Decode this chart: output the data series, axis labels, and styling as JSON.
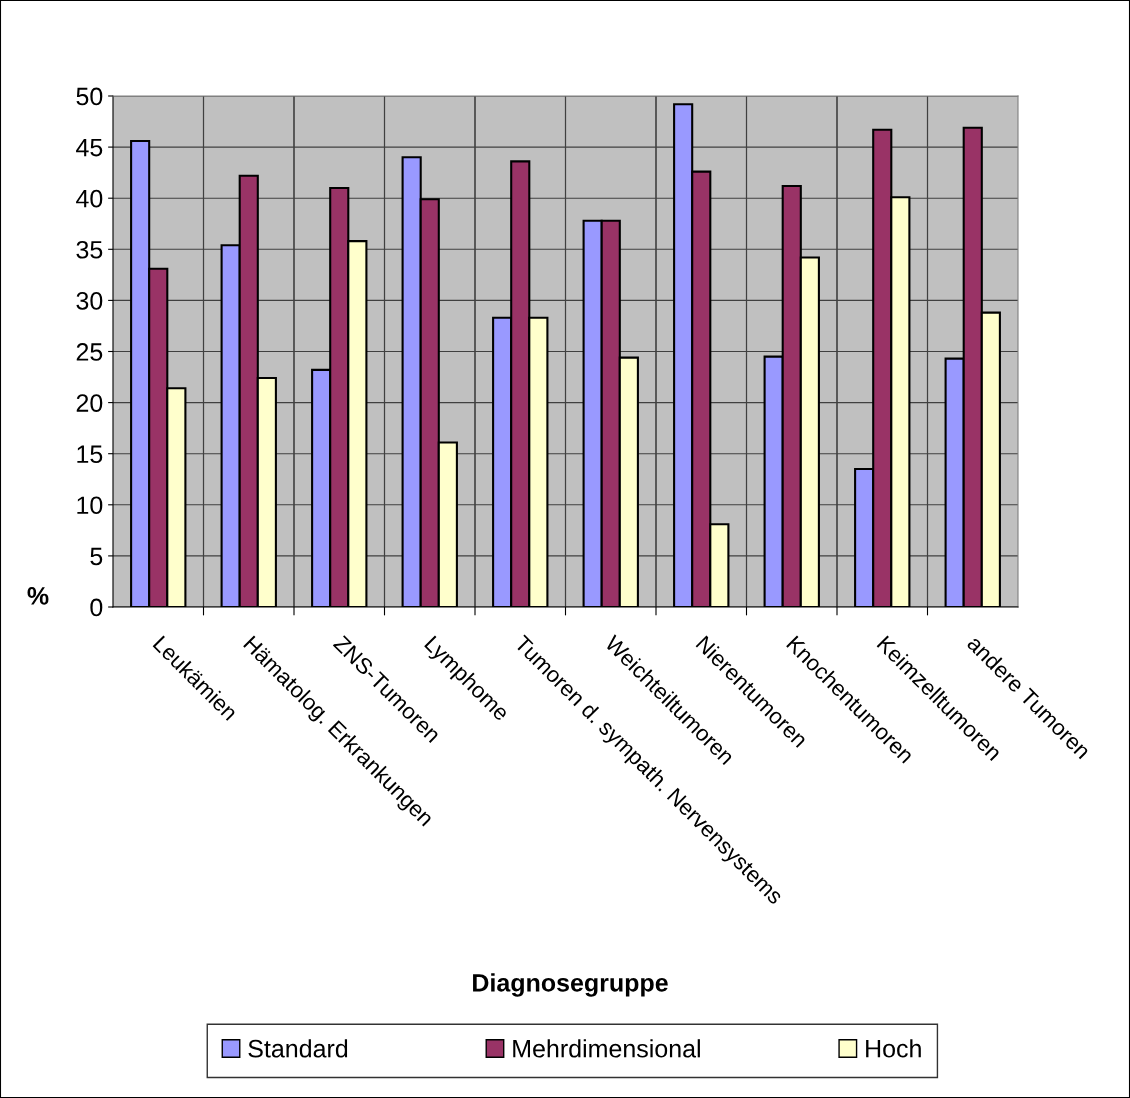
{
  "chart_data": {
    "type": "bar",
    "xlabel": "Diagnosegruppe",
    "ylabel": "%",
    "categories": [
      "Leukämien",
      "Hämatolog. Erkrankungen",
      "ZNS-Tumoren",
      "Lymphome",
      "Tumoren d. sympath. Nervensystems",
      "Weichteiltumoren",
      "Nierentumoren",
      "Knochentumoren",
      "Keimzelltumoren",
      "andere Tumoren"
    ],
    "series": [
      {
        "name": "Standard",
        "color": "#9999ff",
        "values": [
          45.6,
          35.4,
          23.2,
          44.0,
          28.3,
          37.8,
          49.2,
          24.5,
          13.5,
          24.3
        ]
      },
      {
        "name": "Mehrdimensional",
        "color": "#993366",
        "values": [
          33.1,
          42.2,
          41.0,
          39.9,
          43.6,
          37.8,
          42.6,
          41.2,
          46.7,
          46.9
        ]
      },
      {
        "name": "Hoch",
        "color": "#ffffcc",
        "values": [
          21.4,
          22.4,
          35.8,
          16.1,
          28.3,
          24.4,
          8.1,
          34.2,
          40.1,
          28.8
        ]
      }
    ],
    "ylim": [
      0,
      50
    ],
    "yticks": [
      0,
      5,
      10,
      15,
      20,
      25,
      30,
      35,
      40,
      45,
      50
    ],
    "grid": true,
    "legend": "bottom"
  }
}
